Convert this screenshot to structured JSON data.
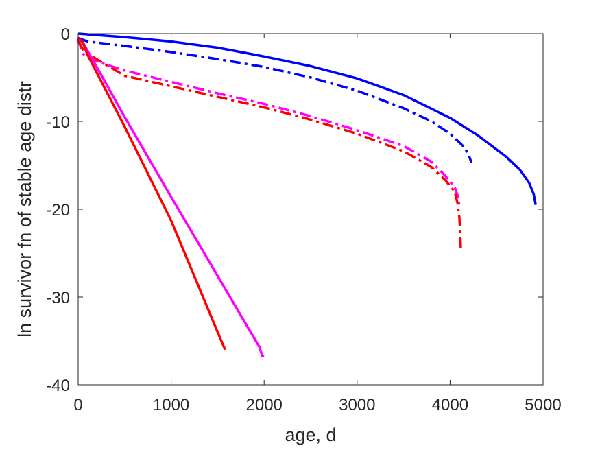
{
  "chart_data": {
    "type": "line",
    "xlabel": "age, d",
    "ylabel": "ln survivor fn of stable age distr",
    "xlim": [
      0,
      5000
    ],
    "ylim": [
      -40,
      0
    ],
    "xticks": [
      0,
      1000,
      2000,
      3000,
      4000,
      5000
    ],
    "xtick_labels": [
      "0",
      "1000",
      "2000",
      "3000",
      "4000",
      "5000"
    ],
    "yticks": [
      0,
      -10,
      -20,
      -30,
      -40
    ],
    "ytick_labels": [
      "0",
      "-10",
      "-20",
      "-30",
      "-40"
    ],
    "grid": false,
    "series": [
      {
        "color": "#0000ff",
        "style": "solid",
        "x": [
          0,
          500,
          1000,
          1500,
          2000,
          2500,
          3000,
          3500,
          4000,
          4300,
          4600,
          4750,
          4850,
          4900,
          4920
        ],
        "y": [
          0,
          -0.4,
          -0.9,
          -1.6,
          -2.6,
          -3.7,
          -5.1,
          -7.0,
          -9.6,
          -11.6,
          -14.0,
          -15.5,
          -17.0,
          -18.3,
          -19.5
        ]
      },
      {
        "color": "#0000ff",
        "style": "dashdot",
        "x": [
          0,
          100,
          500,
          1000,
          1500,
          2000,
          2500,
          3000,
          3500,
          3800,
          4000,
          4150,
          4200,
          4230
        ],
        "y": [
          -0.5,
          -0.9,
          -1.4,
          -2.1,
          -2.9,
          -3.8,
          -5.0,
          -6.5,
          -8.5,
          -10.0,
          -11.4,
          -12.9,
          -13.8,
          -14.7
        ]
      },
      {
        "color": "#ff00ff",
        "style": "dashdot",
        "x": [
          0,
          50,
          150,
          500,
          1000,
          1500,
          2000,
          2500,
          3000,
          3500,
          3800,
          3950,
          4050,
          4090,
          4100
        ],
        "y": [
          -0.6,
          -2.3,
          -3.0,
          -4.2,
          -5.5,
          -6.8,
          -8.0,
          -9.4,
          -11.0,
          -12.8,
          -14.6,
          -16.2,
          -17.5,
          -18.7,
          -19.8
        ]
      },
      {
        "color": "#ff0000",
        "style": "dashdot",
        "x": [
          0,
          50,
          150,
          500,
          1000,
          1500,
          2000,
          2500,
          3000,
          3500,
          3800,
          3950,
          4050,
          4080,
          4100,
          4110,
          4115
        ],
        "y": [
          -0.8,
          -1.8,
          -2.6,
          -4.8,
          -6.0,
          -7.2,
          -8.4,
          -9.8,
          -11.4,
          -13.4,
          -15.2,
          -16.7,
          -18.0,
          -19.3,
          -21.0,
          -23.0,
          -24.5
        ]
      },
      {
        "color": "#ff00ff",
        "style": "solid",
        "x": [
          0,
          50,
          200,
          500,
          1000,
          1500,
          1950,
          1980,
          2000
        ],
        "y": [
          -0.6,
          -1.0,
          -3.8,
          -9.5,
          -18.6,
          -27.6,
          -35.7,
          -36.7,
          -36.7
        ]
      },
      {
        "color": "#ff0000",
        "style": "solid",
        "x": [
          0,
          50,
          100,
          500,
          1000,
          1500,
          1580
        ],
        "y": [
          -0.5,
          -1.0,
          -2.4,
          -10.6,
          -21.3,
          -34.0,
          -36.0
        ]
      }
    ]
  }
}
